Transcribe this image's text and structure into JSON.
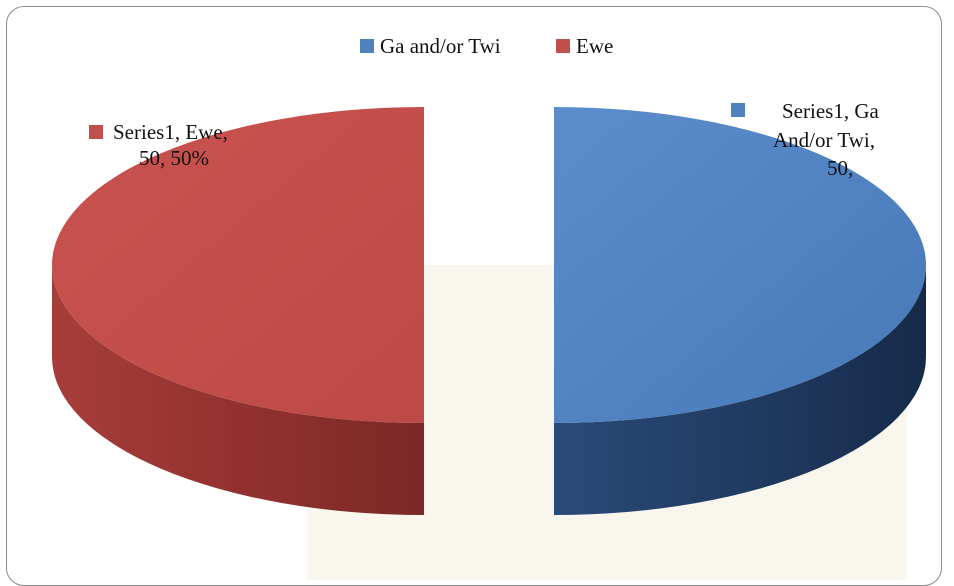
{
  "chart_data": {
    "type": "pie",
    "style": "3d-exploded",
    "legend_position": "top",
    "categories": [
      "Ga and/or Twi",
      "Ewe"
    ],
    "series": [
      {
        "name": "Series1",
        "values": [
          50,
          50
        ]
      }
    ],
    "colors": [
      "#4f81bd",
      "#c0504d"
    ],
    "legend": [
      "Ga and/or Twi",
      "Ewe"
    ],
    "data_labels": [
      {
        "lines": [
          "Series1, Ga",
          "And/or Twi,",
          "50,"
        ],
        "color": "#4f81bd"
      },
      {
        "lines": [
          "Series1, Ewe,",
          "50, 50%"
        ],
        "color": "#c0504d"
      }
    ]
  }
}
